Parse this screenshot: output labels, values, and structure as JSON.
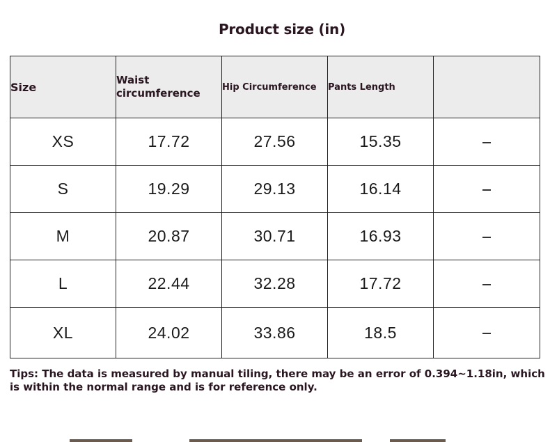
{
  "title": "Product size (in)",
  "table": {
    "headers": {
      "size": "Size",
      "waist_line1": "Waist",
      "waist_line2": "circumference",
      "hip": "Hip Circumference",
      "pants": "Pants Length",
      "extra": ""
    },
    "rows": [
      {
        "size": "XS",
        "waist": "17.72",
        "hip": "27.56",
        "pants": "15.35",
        "extra": "–"
      },
      {
        "size": "S",
        "waist": "19.29",
        "hip": "29.13",
        "pants": "16.14",
        "extra": "–"
      },
      {
        "size": "M",
        "waist": "20.87",
        "hip": "30.71",
        "pants": "16.93",
        "extra": "–"
      },
      {
        "size": "L",
        "waist": "22.44",
        "hip": "32.28",
        "pants": "17.72",
        "extra": "–"
      },
      {
        "size": "XL",
        "waist": "24.02",
        "hip": "33.86",
        "pants": "18.5",
        "extra": "–"
      }
    ]
  },
  "tips": "Tips: The data is measured by manual tiling, there may be an error of 0.394~1.18in, which is within the normal range and is for reference only.",
  "colors": {
    "text_dark": "#2a1620",
    "header_bg": "#ececec",
    "border": "#222222"
  }
}
